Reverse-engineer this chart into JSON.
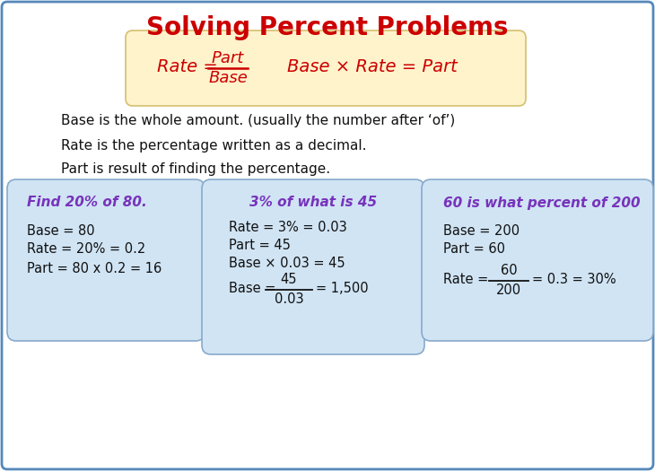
{
  "title": "Solving Percent Problems",
  "title_color": "#CC0000",
  "title_fontsize": 20,
  "bg_color": "#FFFFFF",
  "border_color": "#5588BB",
  "formula_box_color": "#FFF3CC",
  "formula_box_border": "#D4C070",
  "example_box_color": "#D0E4F4",
  "example_box_border": "#88AACC",
  "body_text_color": "#111111",
  "example_title_color": "#7733BB",
  "body_lines": [
    "Base is the whole amount. (usually the number after ‘of’)",
    "Rate is the percentage written as a decimal.",
    "Part is result of finding the percentage."
  ]
}
